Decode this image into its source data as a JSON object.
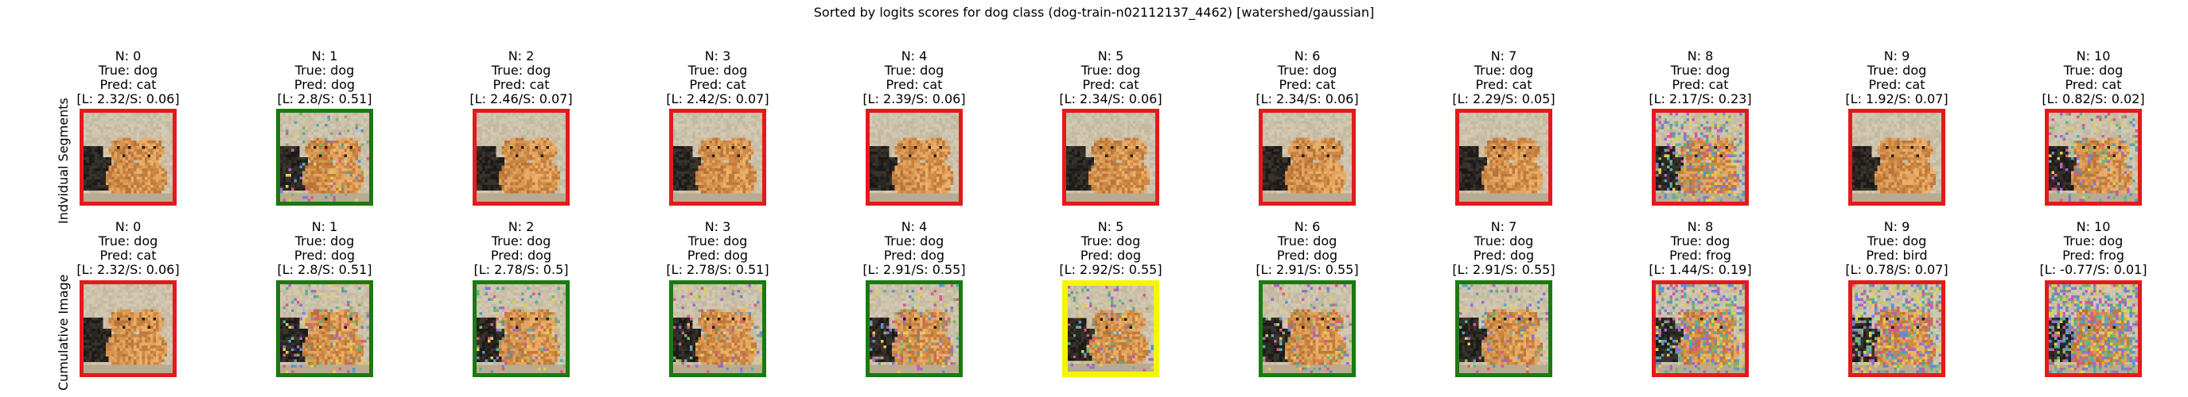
{
  "title": "Sorted by logits scores for dog class (dog-train-n02112137_4462) [watershed/gaussian]",
  "rows": [
    {
      "label": "Indvidual Segments",
      "cells": [
        {
          "n": "N: 0",
          "true": "True: dog",
          "pred": "Pred: cat",
          "scores": "[L: 2.32/S: 0.06]",
          "border": "#e31a1c",
          "noise": 0.0
        },
        {
          "n": "N: 1",
          "true": "True: dog",
          "pred": "Pred: dog",
          "scores": "[L: 2.8/S: 0.51]",
          "border": "#1a7a12",
          "noise": 0.1
        },
        {
          "n": "N: 2",
          "true": "True: dog",
          "pred": "Pred: cat",
          "scores": "[L: 2.46/S: 0.07]",
          "border": "#e31a1c",
          "noise": 0.0
        },
        {
          "n": "N: 3",
          "true": "True: dog",
          "pred": "Pred: cat",
          "scores": "[L: 2.42/S: 0.07]",
          "border": "#e31a1c",
          "noise": 0.0
        },
        {
          "n": "N: 4",
          "true": "True: dog",
          "pred": "Pred: cat",
          "scores": "[L: 2.39/S: 0.06]",
          "border": "#e31a1c",
          "noise": 0.0
        },
        {
          "n": "N: 5",
          "true": "True: dog",
          "pred": "Pred: cat",
          "scores": "[L: 2.34/S: 0.06]",
          "border": "#e31a1c",
          "noise": 0.0
        },
        {
          "n": "N: 6",
          "true": "True: dog",
          "pred": "Pred: cat",
          "scores": "[L: 2.34/S: 0.06]",
          "border": "#e31a1c",
          "noise": 0.0
        },
        {
          "n": "N: 7",
          "true": "True: dog",
          "pred": "Pred: cat",
          "scores": "[L: 2.29/S: 0.05]",
          "border": "#e31a1c",
          "noise": 0.0
        },
        {
          "n": "N: 8",
          "true": "True: dog",
          "pred": "Pred: cat",
          "scores": "[L: 2.17/S: 0.23]",
          "border": "#e31a1c",
          "noise": 0.25
        },
        {
          "n": "N: 9",
          "true": "True: dog",
          "pred": "Pred: cat",
          "scores": "[L: 1.92/S: 0.07]",
          "border": "#e31a1c",
          "noise": 0.0
        },
        {
          "n": "N: 10",
          "true": "True: dog",
          "pred": "Pred: cat",
          "scores": "[L: 0.82/S: 0.02]",
          "border": "#e31a1c",
          "noise": 0.15
        }
      ]
    },
    {
      "label": "Cumulative Image",
      "cells": [
        {
          "n": "N: 0",
          "true": "True: dog",
          "pred": "Pred: cat",
          "scores": "[L: 2.32/S: 0.06]",
          "border": "#e31a1c",
          "noise": 0.0
        },
        {
          "n": "N: 1",
          "true": "True: dog",
          "pred": "Pred: dog",
          "scores": "[L: 2.8/S: 0.51]",
          "border": "#1a7a12",
          "noise": 0.1
        },
        {
          "n": "N: 2",
          "true": "True: dog",
          "pred": "Pred: dog",
          "scores": "[L: 2.78/S: 0.5]",
          "border": "#1a7a12",
          "noise": 0.1
        },
        {
          "n": "N: 3",
          "true": "True: dog",
          "pred": "Pred: dog",
          "scores": "[L: 2.78/S: 0.51]",
          "border": "#1a7a12",
          "noise": 0.1
        },
        {
          "n": "N: 4",
          "true": "True: dog",
          "pred": "Pred: dog",
          "scores": "[L: 2.91/S: 0.55]",
          "border": "#1a7a12",
          "noise": 0.1
        },
        {
          "n": "N: 5",
          "true": "True: dog",
          "pred": "Pred: dog",
          "scores": "[L: 2.92/S: 0.55]",
          "border": "#f5f500",
          "noise": 0.1
        },
        {
          "n": "N: 6",
          "true": "True: dog",
          "pred": "Pred: dog",
          "scores": "[L: 2.91/S: 0.55]",
          "border": "#1a7a12",
          "noise": 0.1
        },
        {
          "n": "N: 7",
          "true": "True: dog",
          "pred": "Pred: dog",
          "scores": "[L: 2.91/S: 0.55]",
          "border": "#1a7a12",
          "noise": 0.1
        },
        {
          "n": "N: 8",
          "true": "True: dog",
          "pred": "Pred: frog",
          "scores": "[L: 1.44/S: 0.19]",
          "border": "#e31a1c",
          "noise": 0.3
        },
        {
          "n": "N: 9",
          "true": "True: dog",
          "pred": "Pred: bird",
          "scores": "[L: 0.78/S: 0.07]",
          "border": "#e31a1c",
          "noise": 0.35
        },
        {
          "n": "N: 10",
          "true": "True: dog",
          "pred": "Pred: frog",
          "scores": "[L: -0.77/S: 0.01]",
          "border": "#e31a1c",
          "noise": 0.45
        }
      ]
    }
  ]
}
